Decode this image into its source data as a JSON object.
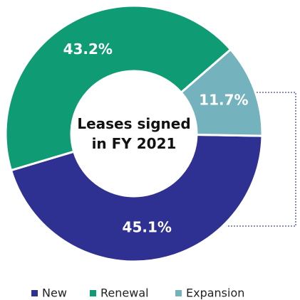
{
  "chart_data": {
    "type": "donut",
    "title": "Leases signed in FY 2021",
    "categories": [
      "New",
      "Renewal",
      "Expansion"
    ],
    "values": [
      45.1,
      43.2,
      11.7
    ],
    "value_labels": [
      "45.1%",
      "43.2%",
      "11.7%"
    ],
    "colors": [
      "#2e3192",
      "#0f9b74",
      "#74b3bd"
    ],
    "legend": "bottom"
  }
}
